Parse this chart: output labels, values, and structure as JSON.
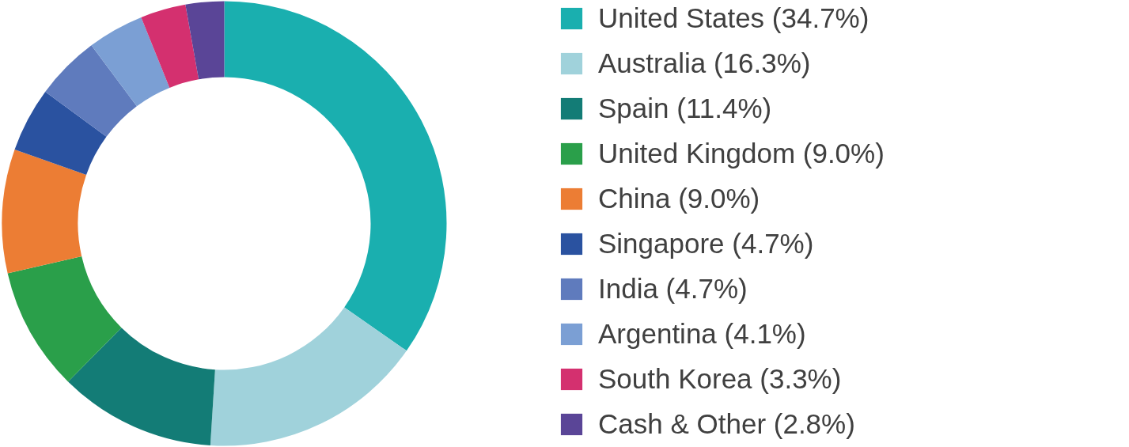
{
  "chart_data": {
    "type": "donut",
    "categories": [
      "United States (34.7%)",
      "Australia (16.3%)",
      "Spain (11.4%)",
      "United Kingdom (9.0%)",
      "China (9.0%)",
      "Singapore (4.7%)",
      "India (4.7%)",
      "Argentina (4.1%)",
      "South Korea (3.3%)",
      "Cash & Other (2.8%)"
    ],
    "values": [
      34.7,
      16.3,
      11.4,
      9.0,
      9.0,
      4.7,
      4.7,
      4.1,
      3.3,
      2.8
    ],
    "colors": [
      "#1aafaf",
      "#a0d2db",
      "#137c76",
      "#2a9f4a",
      "#ec7d34",
      "#2a52a0",
      "#5f7bbd",
      "#7b9fd4",
      "#d4306f",
      "#5a4597"
    ],
    "legend": "right"
  }
}
